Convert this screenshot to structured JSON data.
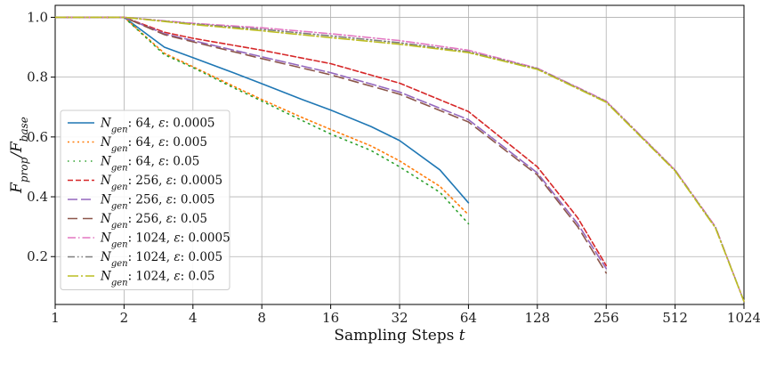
{
  "chart_data": {
    "type": "line",
    "title": "",
    "xlabel": "Sampling Steps t",
    "ylabel": "F_prop/F_base",
    "x_scale": "log2",
    "xlim": [
      1,
      1024
    ],
    "ylim": [
      0.04,
      1.04
    ],
    "x_ticks": [
      1,
      2,
      4,
      8,
      16,
      32,
      64,
      128,
      256,
      512,
      1024
    ],
    "x_tick_labels": [
      "1",
      "2",
      "4",
      "8",
      "16",
      "32",
      "64",
      "128",
      "256",
      "512",
      "1024"
    ],
    "y_ticks": [
      0.2,
      0.4,
      0.6,
      0.8,
      1.0
    ],
    "y_tick_labels": [
      "0.2",
      "0.4",
      "0.6",
      "0.8",
      "1.0"
    ],
    "grid": true,
    "legend_position": "lower-left",
    "series": [
      {
        "name": "N_gen: 64, ε: 0.0005",
        "ngen": "64",
        "eps": "0.0005",
        "color": "#1f77b4",
        "dash": "solid",
        "x": [
          1,
          2,
          3,
          4,
          6,
          8,
          12,
          16,
          24,
          32,
          48,
          64
        ],
        "y": [
          1.0,
          1.0,
          0.9,
          0.865,
          0.815,
          0.778,
          0.725,
          0.69,
          0.635,
          0.588,
          0.49,
          0.38
        ]
      },
      {
        "name": "N_gen: 64, ε: 0.005",
        "ngen": "64",
        "eps": "0.005",
        "color": "#ff7f0e",
        "dash": "dotted",
        "x": [
          1,
          2,
          3,
          4,
          6,
          8,
          12,
          16,
          24,
          32,
          48,
          64
        ],
        "y": [
          1.0,
          1.0,
          0.88,
          0.835,
          0.77,
          0.725,
          0.665,
          0.625,
          0.57,
          0.52,
          0.435,
          0.34
        ]
      },
      {
        "name": "N_gen: 64, ε: 0.05",
        "ngen": "64",
        "eps": "0.05",
        "color": "#2ca02c",
        "dash": "sparse-dotted",
        "x": [
          1,
          2,
          3,
          4,
          6,
          8,
          12,
          16,
          24,
          32,
          48,
          64
        ],
        "y": [
          1.0,
          1.0,
          0.875,
          0.832,
          0.765,
          0.72,
          0.655,
          0.61,
          0.555,
          0.5,
          0.415,
          0.31
        ]
      },
      {
        "name": "N_gen: 256, ε: 0.0005",
        "ngen": "256",
        "eps": "0.0005",
        "color": "#d62728",
        "dash": "dashed",
        "x": [
          1,
          2,
          3,
          4,
          8,
          16,
          32,
          64,
          128,
          192,
          256
        ],
        "y": [
          1.0,
          1.0,
          0.95,
          0.93,
          0.89,
          0.845,
          0.78,
          0.685,
          0.5,
          0.33,
          0.17
        ]
      },
      {
        "name": "N_gen: 256, ε: 0.005",
        "ngen": "256",
        "eps": "0.005",
        "color": "#9467bd",
        "dash": "long-dash",
        "x": [
          1,
          2,
          3,
          4,
          8,
          16,
          32,
          64,
          128,
          192,
          256
        ],
        "y": [
          1.0,
          1.0,
          0.945,
          0.922,
          0.868,
          0.815,
          0.75,
          0.658,
          0.48,
          0.31,
          0.16
        ]
      },
      {
        "name": "N_gen: 256, ε: 0.05",
        "ngen": "256",
        "eps": "0.05",
        "color": "#8c564b",
        "dash": "long-dash-gap",
        "x": [
          1,
          2,
          3,
          4,
          8,
          16,
          32,
          64,
          128,
          192,
          256
        ],
        "y": [
          1.0,
          1.0,
          0.942,
          0.918,
          0.862,
          0.808,
          0.743,
          0.65,
          0.473,
          0.3,
          0.145
        ]
      },
      {
        "name": "N_gen: 1024, ε: 0.0005",
        "ngen": "1024",
        "eps": "0.0005",
        "color": "#e377c2",
        "dash": "dash-dot",
        "x": [
          1,
          2,
          4,
          8,
          16,
          32,
          64,
          128,
          256,
          512,
          768,
          1024
        ],
        "y": [
          1.0,
          1.0,
          0.98,
          0.965,
          0.945,
          0.922,
          0.89,
          0.83,
          0.72,
          0.49,
          0.3,
          0.05
        ]
      },
      {
        "name": "N_gen: 1024, ε: 0.005",
        "ngen": "1024",
        "eps": "0.005",
        "color": "#7f7f7f",
        "dash": "dash-dot-dot",
        "x": [
          1,
          2,
          4,
          8,
          16,
          32,
          64,
          128,
          256,
          512,
          768,
          1024
        ],
        "y": [
          1.0,
          1.0,
          0.978,
          0.96,
          0.938,
          0.915,
          0.885,
          0.828,
          0.718,
          0.488,
          0.298,
          0.05
        ]
      },
      {
        "name": "N_gen: 1024, ε: 0.05",
        "ngen": "1024",
        "eps": "0.05",
        "color": "#bcbd22",
        "dash": "dash-dot-long",
        "x": [
          1,
          2,
          4,
          8,
          16,
          32,
          64,
          128,
          256,
          512,
          768,
          1024
        ],
        "y": [
          1.0,
          1.0,
          0.976,
          0.955,
          0.932,
          0.91,
          0.882,
          0.826,
          0.716,
          0.486,
          0.296,
          0.05
        ]
      }
    ]
  }
}
